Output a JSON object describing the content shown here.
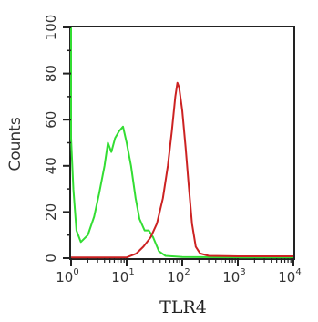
{
  "chart_data": {
    "type": "line",
    "xlabel": "TLR4",
    "ylabel": "Counts",
    "x_scale": "log",
    "xlim": [
      1,
      10000
    ],
    "ylim": [
      0,
      100
    ],
    "x_ticks": [
      {
        "base": "10",
        "exp": "0"
      },
      {
        "base": "10",
        "exp": "1"
      },
      {
        "base": "10",
        "exp": "2"
      },
      {
        "base": "10",
        "exp": "3"
      },
      {
        "base": "10",
        "exp": "4"
      }
    ],
    "y_ticks": [
      "0",
      "20",
      "40",
      "60",
      "80",
      "100"
    ],
    "grid": false,
    "series": [
      {
        "color": "#33dd33",
        "points": [
          [
            1.0,
            100
          ],
          [
            1.0,
            52
          ],
          [
            1.1,
            30
          ],
          [
            1.25,
            12
          ],
          [
            1.5,
            7
          ],
          [
            2.0,
            10
          ],
          [
            2.6,
            18
          ],
          [
            3.2,
            28
          ],
          [
            4.0,
            40
          ],
          [
            4.6,
            50
          ],
          [
            5.3,
            46
          ],
          [
            6.2,
            52
          ],
          [
            7.3,
            55
          ],
          [
            8.6,
            57
          ],
          [
            10.0,
            50
          ],
          [
            12.0,
            40
          ],
          [
            14.5,
            26
          ],
          [
            17.0,
            17
          ],
          [
            21.0,
            12
          ],
          [
            25.0,
            12
          ],
          [
            30.0,
            9
          ],
          [
            38.0,
            3
          ],
          [
            50.0,
            1
          ],
          [
            100,
            0.5
          ],
          [
            1000,
            0.3
          ],
          [
            10000,
            0.3
          ]
        ]
      },
      {
        "color": "#cc2222",
        "points": [
          [
            1.0,
            0.3
          ],
          [
            10,
            0.3
          ],
          [
            15,
            2
          ],
          [
            20,
            5
          ],
          [
            27,
            9
          ],
          [
            35,
            15
          ],
          [
            45,
            26
          ],
          [
            55,
            40
          ],
          [
            65,
            55
          ],
          [
            75,
            70
          ],
          [
            82,
            76
          ],
          [
            88,
            74
          ],
          [
            100,
            64
          ],
          [
            115,
            48
          ],
          [
            130,
            32
          ],
          [
            150,
            15
          ],
          [
            175,
            5
          ],
          [
            210,
            2
          ],
          [
            300,
            1
          ],
          [
            1000,
            0.8
          ],
          [
            10000,
            0.8
          ]
        ]
      }
    ]
  }
}
